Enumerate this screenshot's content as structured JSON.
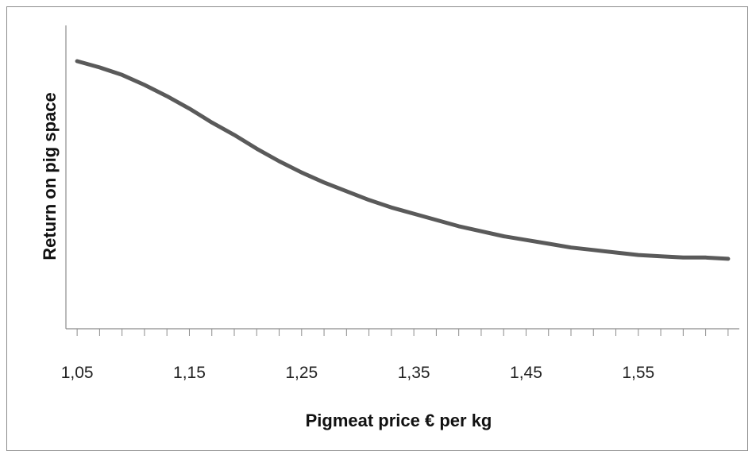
{
  "chart_data": {
    "type": "line",
    "title": "",
    "xlabel": "Pigmeat  price € per kg",
    "ylabel": "Return on pig space",
    "x_tick_labels": [
      "1,05",
      "1,15",
      "1,25",
      "1,35",
      "1,45",
      "1,55"
    ],
    "x_tick_values": [
      1.05,
      1.15,
      1.25,
      1.35,
      1.45,
      1.55
    ],
    "xlim": [
      1.04,
      1.64
    ],
    "ylim": [
      0,
      1
    ],
    "y_axis_labels_shown": false,
    "grid": false,
    "legend": "none",
    "line_color": "#5a5a5a",
    "series": [
      {
        "x": [
          1.05,
          1.07,
          1.09,
          1.11,
          1.13,
          1.15,
          1.17,
          1.19,
          1.21,
          1.23,
          1.25,
          1.27,
          1.29,
          1.31,
          1.33,
          1.35,
          1.37,
          1.39,
          1.41,
          1.43,
          1.45,
          1.47,
          1.49,
          1.51,
          1.53,
          1.55,
          1.57,
          1.59,
          1.61,
          1.63
        ],
        "values": [
          1.0,
          0.975,
          0.945,
          0.905,
          0.86,
          0.81,
          0.755,
          0.705,
          0.65,
          0.6,
          0.555,
          0.515,
          0.48,
          0.445,
          0.415,
          0.39,
          0.365,
          0.34,
          0.32,
          0.3,
          0.285,
          0.27,
          0.255,
          0.245,
          0.235,
          0.225,
          0.22,
          0.215,
          0.215,
          0.21
        ]
      }
    ]
  }
}
